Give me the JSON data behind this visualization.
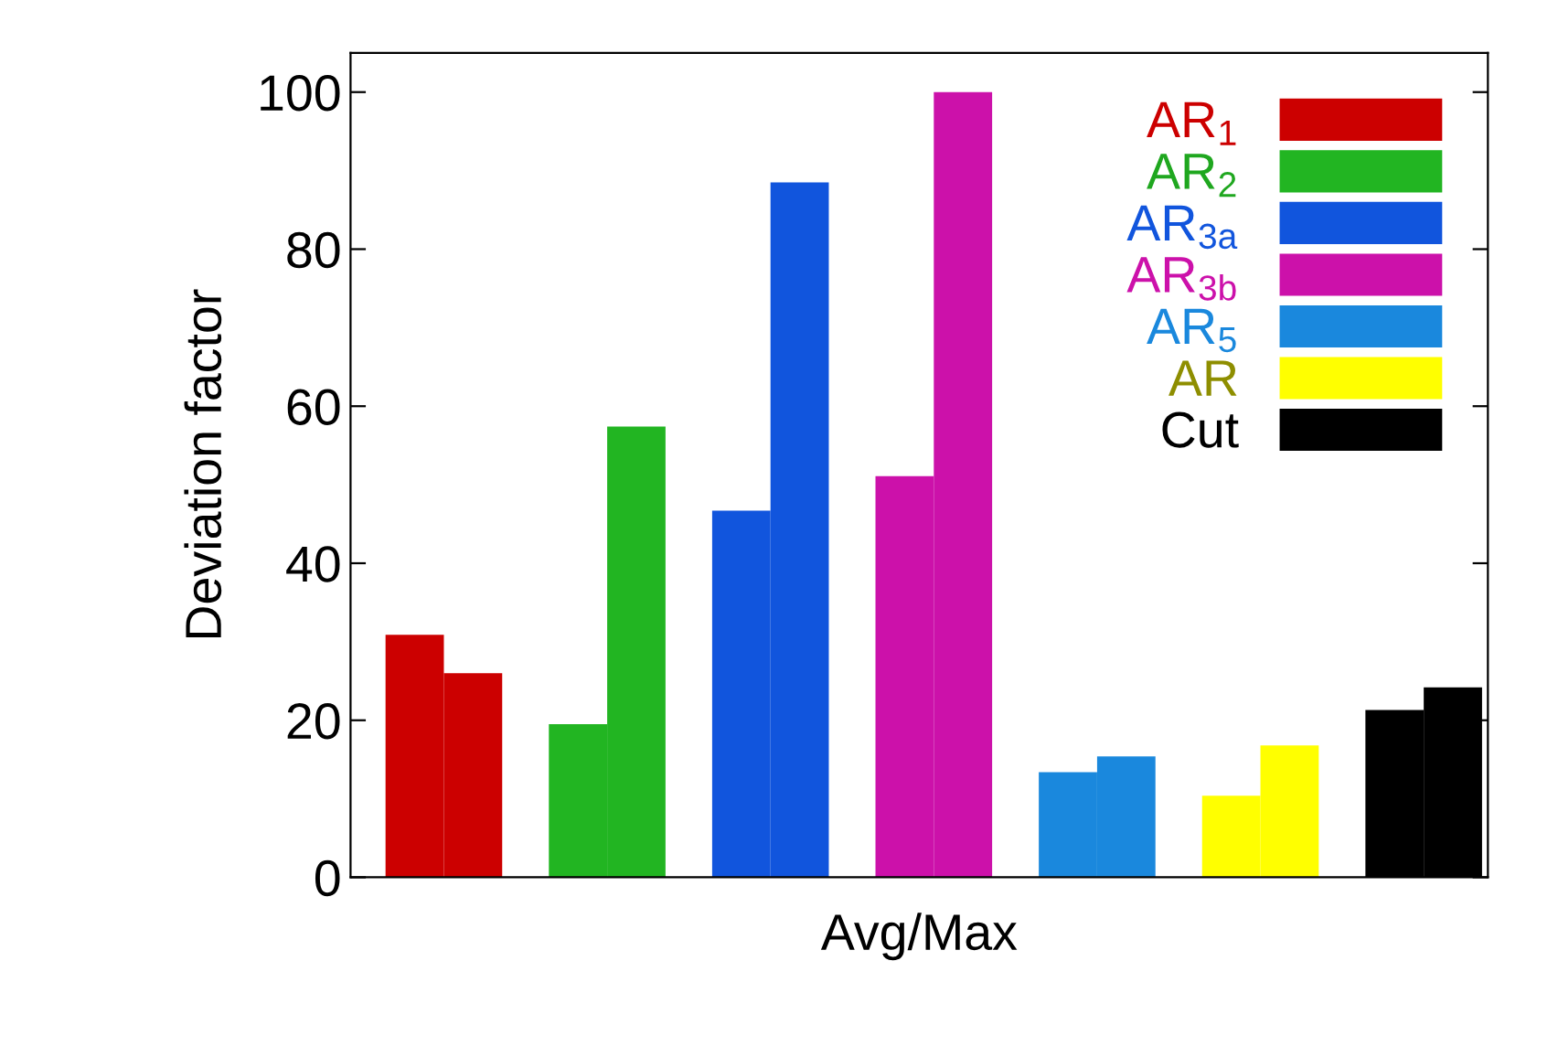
{
  "chart_data": {
    "type": "bar",
    "xlabel": "Avg/Max",
    "ylabel": "Deviation factor",
    "categories": [
      null,
      null,
      null,
      null,
      null,
      null,
      null,
      null,
      null,
      null,
      null,
      null,
      null,
      null
    ],
    "series": [
      {
        "name": "AR$_{1}$",
        "color": "#cc0000",
        "values": [
          30.9,
          26.0,
          null,
          null,
          null,
          null,
          null,
          null,
          null,
          null,
          null,
          null,
          null,
          null
        ]
      },
      {
        "name": "AR$_{2}$",
        "color": "#22b522",
        "values": [
          null,
          null,
          19.5,
          57.4,
          null,
          null,
          null,
          null,
          null,
          null,
          null,
          null,
          null,
          null
        ]
      },
      {
        "name": "AR$_{3a}$",
        "color": "#1155dd",
        "values": [
          null,
          null,
          null,
          null,
          46.7,
          88.5,
          null,
          null,
          null,
          null,
          null,
          null,
          null,
          null
        ]
      },
      {
        "name": "AR$_{3b}$",
        "color": "#cc11aa",
        "values": [
          null,
          null,
          null,
          null,
          null,
          null,
          51.1,
          100,
          null,
          null,
          null,
          null,
          null,
          null
        ]
      },
      {
        "name": "AR$_{5}$",
        "color": "#1a88dd",
        "values": [
          null,
          null,
          null,
          null,
          null,
          null,
          null,
          null,
          13.4,
          15.4,
          null,
          null,
          null,
          null
        ]
      },
      {
        "name": "AR",
        "color": "#ffff00",
        "values": [
          null,
          null,
          null,
          null,
          null,
          null,
          null,
          null,
          null,
          null,
          10.4,
          16.8,
          null,
          null
        ]
      },
      {
        "name": "Cut",
        "color": "#000000",
        "values": [
          null,
          null,
          null,
          null,
          null,
          null,
          null,
          null,
          null,
          null,
          null,
          null,
          21.3,
          24.2
        ]
      }
    ],
    "ylim": [
      0,
      105
    ],
    "yticks": [
      0,
      20,
      40,
      60,
      80,
      100
    ],
    "grid": false,
    "legend": "top right",
    "tick_labels": "y"
  }
}
